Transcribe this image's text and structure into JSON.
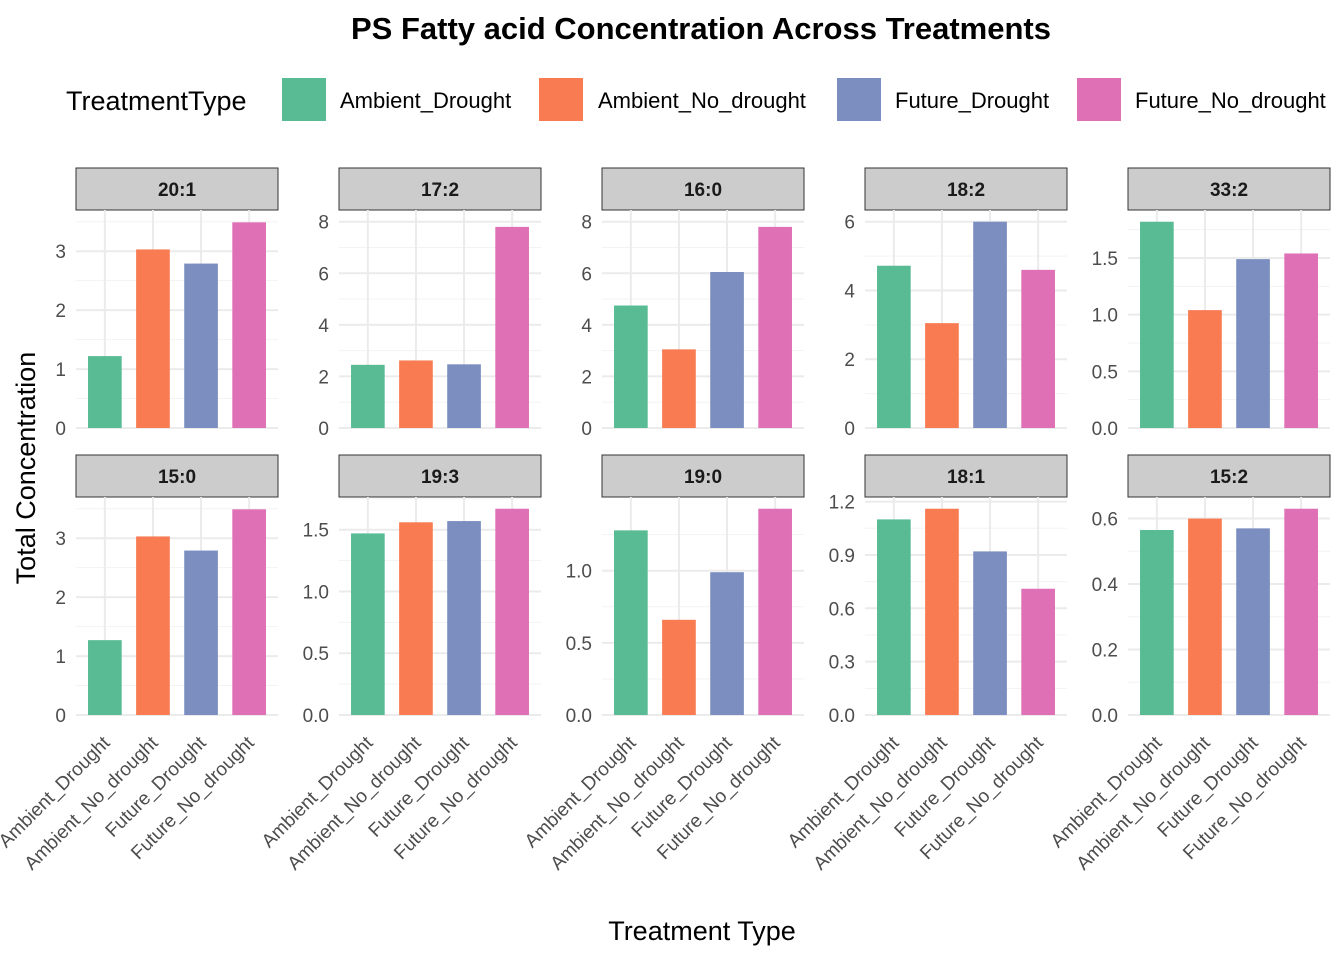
{
  "chart_data": {
    "type": "bar",
    "title": "PS  Fatty acid Concentration Across Treatments",
    "xlabel": "Treatment Type",
    "ylabel": "Total Concentration",
    "legend": {
      "title": "TreatmentType",
      "placement": "top",
      "entries": [
        "Ambient_Drought",
        "Ambient_No_drought",
        "Future_Drought",
        "Future_No_drought"
      ]
    },
    "colors": {
      "Ambient_Drought": "#59bb94",
      "Ambient_No_drought": "#f87b52",
      "Future_Drought": "#7b8ebf",
      "Future_No_drought": "#e070b6"
    },
    "categories": [
      "Ambient_Drought",
      "Ambient_No_drought",
      "Future_Drought",
      "Future_No_drought"
    ],
    "facets": [
      {
        "label": "20:1",
        "values": [
          1.22,
          3.03,
          2.79,
          3.49
        ],
        "ylim": [
          0,
          3.5
        ],
        "yticks": [
          0,
          1,
          2,
          3
        ],
        "yticklabels": [
          "0",
          "1",
          "2",
          "3"
        ]
      },
      {
        "label": "17:2",
        "values": [
          2.45,
          2.62,
          2.47,
          7.8
        ],
        "ylim": [
          0,
          8
        ],
        "yticks": [
          0,
          2,
          4,
          6,
          8
        ],
        "yticklabels": [
          "0",
          "2",
          "4",
          "6",
          "8"
        ]
      },
      {
        "label": "16:0",
        "values": [
          4.75,
          3.05,
          6.05,
          7.8
        ],
        "ylim": [
          0,
          8
        ],
        "yticks": [
          0,
          2,
          4,
          6,
          8
        ],
        "yticklabels": [
          "0",
          "2",
          "4",
          "6",
          "8"
        ]
      },
      {
        "label": "18:2",
        "values": [
          4.72,
          3.05,
          6.0,
          4.6
        ],
        "ylim": [
          0,
          6
        ],
        "yticks": [
          0,
          2,
          4,
          6
        ],
        "yticklabels": [
          "0",
          "2",
          "4",
          "6"
        ]
      },
      {
        "label": "33:2",
        "values": [
          1.82,
          1.04,
          1.49,
          1.54
        ],
        "ylim": [
          0,
          1.82
        ],
        "yticks": [
          0,
          0.5,
          1.0,
          1.5
        ],
        "yticklabels": [
          "0.0",
          "0.5",
          "1.0",
          "1.5"
        ]
      },
      {
        "label": "15:0",
        "values": [
          1.27,
          3.03,
          2.79,
          3.49
        ],
        "ylim": [
          0,
          3.5
        ],
        "yticks": [
          0,
          1,
          2,
          3
        ],
        "yticklabels": [
          "0",
          "1",
          "2",
          "3"
        ]
      },
      {
        "label": "19:3",
        "values": [
          1.47,
          1.56,
          1.57,
          1.67
        ],
        "ylim": [
          0,
          1.67
        ],
        "yticks": [
          0,
          0.5,
          1.0,
          1.5
        ],
        "yticklabels": [
          "0.0",
          "0.5",
          "1.0",
          "1.5"
        ]
      },
      {
        "label": "19:0",
        "values": [
          1.28,
          0.66,
          0.99,
          1.43
        ],
        "ylim": [
          0,
          1.43
        ],
        "yticks": [
          0,
          0.5,
          1.0
        ],
        "yticklabels": [
          "0.0",
          "0.5",
          "1.0"
        ]
      },
      {
        "label": "18:1",
        "values": [
          1.1,
          1.16,
          0.92,
          0.71
        ],
        "ylim": [
          0,
          1.16
        ],
        "yticks": [
          0,
          0.3,
          0.6,
          0.9,
          1.2
        ],
        "yticklabels": [
          "0.0",
          "0.3",
          "0.6",
          "0.9",
          "1.2"
        ]
      },
      {
        "label": "15:2",
        "values": [
          0.565,
          0.6,
          0.57,
          0.63
        ],
        "ylim": [
          0,
          0.63
        ],
        "yticks": [
          0,
          0.2,
          0.4,
          0.6
        ],
        "yticklabels": [
          "0.0",
          "0.2",
          "0.4",
          "0.6"
        ]
      }
    ],
    "grid": true
  }
}
